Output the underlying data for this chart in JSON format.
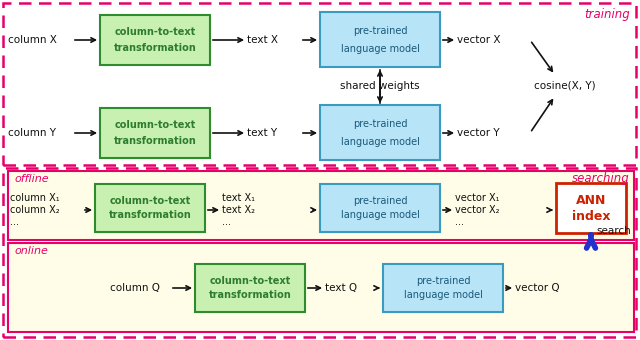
{
  "fig_width": 6.4,
  "fig_height": 3.4,
  "dpi": 100,
  "bg_white": "#ffffff",
  "bg_yellow": "#fffde7",
  "pink": "#e8006a",
  "green_face": "#c8f0b0",
  "green_edge": "#2e8b2e",
  "green_text": "#2e7d2e",
  "blue_face": "#b8e4f8",
  "blue_edge": "#3a9bbf",
  "blue_text": "#1a5a7a",
  "red_edge": "#cc2200",
  "red_text": "#cc2200",
  "black": "#111111",
  "blue_arrow": "#2233cc",
  "training_label": "training",
  "searching_label": "searching",
  "offline_label": "offline",
  "online_label": "online"
}
